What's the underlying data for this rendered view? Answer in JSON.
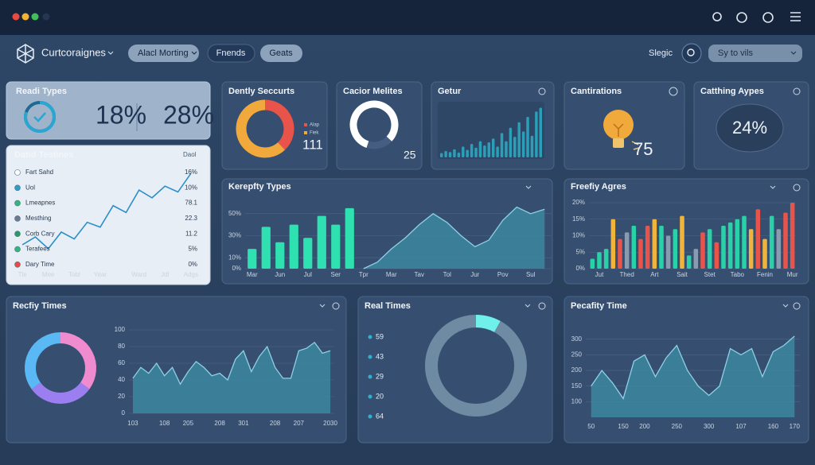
{
  "window": {
    "brand": "Curtcoraignes",
    "tabs": [
      "Alacl Morting",
      "Fnends",
      "Geats"
    ],
    "search_label": "Slegic",
    "search_placeholder": "Sy to vils"
  },
  "chart_data": [
    {
      "type": "kpi",
      "title": "Readi Types",
      "values": [
        18,
        28
      ],
      "value_labels": [
        "18%",
        "28%"
      ]
    },
    {
      "type": "line",
      "title": "Datid Testines",
      "header": "Daol",
      "rows": [
        {
          "name": "Fart Sahd",
          "value": "16%",
          "color": "#ffffff"
        },
        {
          "name": "Uol",
          "value": "10%",
          "color": "#2aa0c8"
        },
        {
          "name": "Lmeapnes",
          "value": "78.1",
          "color": "#2fb87a"
        },
        {
          "name": "Mesthing",
          "value": "22.3",
          "color": "#6a7a90"
        },
        {
          "name": "Corb Cary",
          "value": "11.2",
          "color": "#2a9a6a"
        },
        {
          "name": "Terafees",
          "value": "5%",
          "color": "#2fb87a"
        },
        {
          "name": "Dary Time",
          "value": "0%",
          "color": "#e84a4a"
        }
      ],
      "categories": [
        "Tle",
        null,
        "Mee",
        null,
        "Tobl",
        null,
        "Year",
        null,
        null,
        "Ward",
        null,
        "Jdl",
        null,
        "Adgs"
      ],
      "values": [
        22,
        30,
        18,
        35,
        28,
        45,
        40,
        62,
        55,
        78,
        70,
        82,
        76,
        95
      ],
      "ylim": [
        0,
        100
      ],
      "color": "#2a8fc8"
    },
    {
      "type": "donut",
      "title": "Dently Seccurts",
      "categories": [
        "Alap",
        "Fiek"
      ],
      "values": [
        38,
        62
      ],
      "colors": [
        "#e8534a",
        "#f2a93b"
      ],
      "annotation": "111"
    },
    {
      "type": "donut",
      "title": "Cacior Melites",
      "values": [
        82,
        18
      ],
      "colors": [
        "#ffffff",
        "#445d80"
      ],
      "annotation": "25"
    },
    {
      "type": "bar",
      "title": "Getur",
      "categories": [
        null,
        null,
        null,
        null,
        null,
        null,
        null,
        null,
        null,
        null,
        null,
        null,
        null,
        null,
        null,
        null,
        null,
        null,
        null,
        null,
        null,
        null,
        null,
        null
      ],
      "values": [
        8,
        12,
        10,
        15,
        9,
        20,
        14,
        25,
        18,
        30,
        22,
        28,
        35,
        20,
        45,
        30,
        55,
        38,
        65,
        48,
        75,
        40,
        85,
        92
      ],
      "color": "#2b9fb8",
      "ylim": [
        0,
        100
      ]
    },
    {
      "type": "kpi",
      "title": "Cantirations",
      "values": [
        75
      ],
      "icon": "bulb"
    },
    {
      "type": "kpi",
      "title": "Catthing Aypes",
      "values": [
        24
      ],
      "value_labels": [
        "24%"
      ]
    },
    {
      "type": "combo",
      "title": "Kerepfty Types",
      "categories": [
        "Mar",
        null,
        "Jun",
        null,
        "Jul",
        null,
        "Ser",
        null,
        "Tpr",
        null,
        "Mar",
        null,
        "Tav",
        null,
        "Tol",
        null,
        "Jur",
        null,
        "Pov",
        null,
        "Sul",
        null
      ],
      "series": [
        {
          "type": "bar",
          "color": "#2fe0b0",
          "values": [
            18,
            38,
            24,
            40,
            28,
            48,
            40,
            55,
            null,
            null,
            null,
            null,
            null,
            null,
            null,
            null,
            null,
            null,
            null,
            null,
            null,
            null
          ]
        },
        {
          "type": "area",
          "color": "#3e8da6",
          "values": [
            null,
            null,
            null,
            null,
            null,
            null,
            null,
            null,
            0,
            6,
            18,
            28,
            40,
            50,
            42,
            30,
            20,
            26,
            44,
            56,
            50,
            54
          ]
        }
      ],
      "ylim": [
        0,
        60
      ],
      "yticks": [
        {
          "value": 0,
          "label": "0%"
        },
        {
          "value": 10,
          "label": "10%"
        },
        {
          "value": 30,
          "label": "30%"
        },
        {
          "value": 50,
          "label": "50%"
        }
      ],
      "grid": true
    },
    {
      "type": "bar",
      "title": "Freefiy Agres",
      "categories": [
        null,
        "Jut",
        null,
        null,
        null,
        "Thed",
        null,
        null,
        null,
        "Art",
        null,
        null,
        null,
        "Sait",
        null,
        null,
        null,
        "Stet",
        null,
        null,
        null,
        "Tabo",
        null,
        null,
        null,
        "Fenin",
        null,
        null,
        null,
        "Mur"
      ],
      "values": [
        3,
        5,
        6,
        15,
        9,
        11,
        13,
        9,
        13,
        15,
        13,
        10,
        12,
        16,
        4,
        6,
        11,
        12,
        8,
        13,
        14,
        15,
        16,
        12,
        18,
        9,
        16,
        12,
        17,
        20
      ],
      "colors": [
        "#2ad1a8",
        "#2ad1a8",
        "#2ad1a8",
        "#f0b43c",
        "#e8534a",
        "#8a9bb0",
        "#2ad1a8",
        "#e8534a",
        "#e8534a",
        "#f0b43c",
        "#2ad1a8",
        "#8a9bb0",
        "#2ad1a8",
        "#f0b43c",
        "#2ad1a8",
        "#8a9bb0",
        "#e8534a",
        "#2ad1a8",
        "#e8534a",
        "#2ad1a8",
        "#2ad1a8",
        "#2ad1a8",
        "#2ad1a8",
        "#f0b43c",
        "#e8534a",
        "#f0b43c",
        "#2ad1a8",
        "#8a9bb0",
        "#e8534a",
        "#e8534a"
      ],
      "ylim": [
        0,
        20
      ],
      "yticks": [
        {
          "value": 0,
          "label": "0%"
        },
        {
          "value": 5,
          "label": "5%"
        },
        {
          "value": 10,
          "label": "10%"
        },
        {
          "value": 15,
          "label": "15%"
        },
        {
          "value": 20,
          "label": "20%"
        }
      ],
      "grid": true
    },
    {
      "type": "donut",
      "title": "Recfiy Times",
      "values": [
        35,
        30,
        35
      ],
      "colors": [
        "#f08bd0",
        "#9b7ff0",
        "#5ab8f5"
      ]
    },
    {
      "type": "area",
      "categories": [
        "103",
        null,
        null,
        null,
        "108",
        null,
        null,
        "205",
        null,
        null,
        null,
        "208",
        null,
        null,
        "301",
        null,
        null,
        null,
        "208",
        null,
        null,
        "207",
        null,
        null,
        null,
        "2030"
      ],
      "values": [
        42,
        55,
        48,
        60,
        45,
        55,
        35,
        50,
        62,
        55,
        45,
        48,
        40,
        65,
        75,
        50,
        68,
        80,
        55,
        42,
        42,
        75,
        78,
        85,
        72,
        75
      ],
      "color": "#3e8da6",
      "ylim": [
        0,
        100
      ],
      "yticks": [
        0,
        20,
        40,
        60,
        80,
        100
      ],
      "grid": true
    },
    {
      "type": "donut",
      "title": "Real Times",
      "list": [
        59,
        43,
        29,
        20,
        64
      ],
      "list_color": "#2fb0d0",
      "values": [
        8,
        92
      ],
      "colors": [
        "#6ff0ea",
        "#6f8aa3"
      ]
    },
    {
      "type": "area",
      "title": "Pecafity Time",
      "categories": [
        "50",
        null,
        null,
        "150",
        null,
        "200",
        null,
        null,
        "250",
        null,
        null,
        "300",
        null,
        null,
        "107",
        null,
        null,
        "160",
        null,
        "170"
      ],
      "values": [
        150,
        200,
        160,
        110,
        230,
        250,
        180,
        240,
        280,
        200,
        150,
        120,
        150,
        270,
        250,
        270,
        180,
        260,
        280,
        310
      ],
      "color": "#3e8da6",
      "ylim": [
        50,
        330
      ],
      "yticks": [
        100,
        150,
        200,
        250,
        300
      ],
      "grid": true
    }
  ]
}
